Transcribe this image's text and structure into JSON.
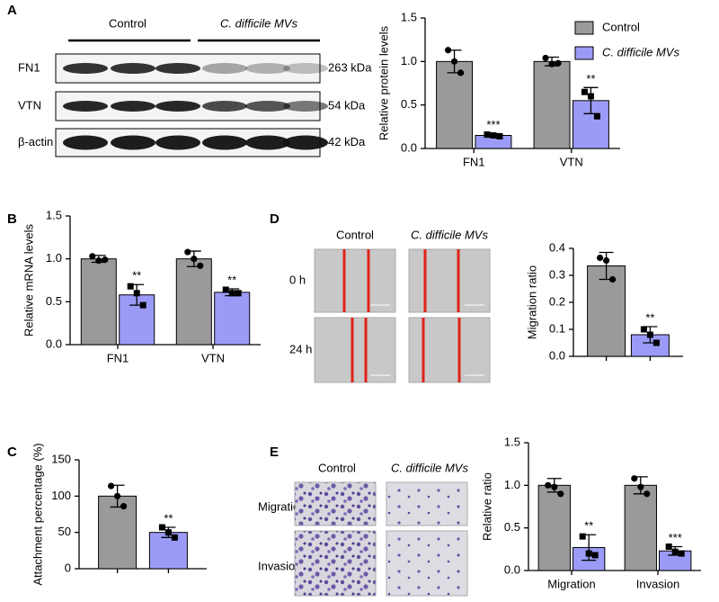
{
  "panels": [
    "A",
    "B",
    "C",
    "D",
    "E"
  ],
  "blot": {
    "groups": [
      "Control",
      "C. difficile MVs"
    ],
    "rows": [
      {
        "label": "FN1",
        "size": "263 kDa"
      },
      {
        "label": "VTN",
        "size": "54 kDa"
      },
      {
        "label": "β-actin",
        "size": "42 kDa"
      }
    ]
  },
  "scratch": {
    "columns": [
      "Control",
      "C. difficile MVs"
    ],
    "rows": [
      "0 h",
      "24 h"
    ]
  },
  "transwell": {
    "columns": [
      "Control",
      "C. difficile MVs"
    ],
    "rows": [
      "Migration",
      "Invasion"
    ]
  },
  "chart_data": [
    {
      "type": "bar",
      "y_label": "Relative protein levels",
      "categories": [
        "FN1",
        "VTN"
      ],
      "ylim": [
        0,
        1.5
      ],
      "yticks": [
        {
          "value": 0,
          "label": "0.0"
        },
        0.5,
        {
          "value": 1,
          "label": "1.0"
        },
        1.5
      ],
      "legend": "right",
      "series": [
        {
          "name": "Control",
          "color": "#9a9a9a",
          "values": [
            1.0,
            1.0
          ],
          "errors": [
            0.13,
            0.05
          ],
          "points": [
            [
              1.13,
              1.0,
              0.87
            ],
            [
              1.04,
              0.97,
              0.98
            ]
          ]
        },
        {
          "name": "C. difficile MVs",
          "color": "#9b9bf7",
          "values": [
            0.15,
            0.55
          ],
          "errors": [
            0.02,
            0.15
          ],
          "points": [
            [
              0.16,
              0.15,
              0.14
            ],
            [
              0.65,
              0.6,
              0.37
            ]
          ],
          "annotations": [
            "***",
            "**"
          ]
        }
      ]
    },
    {
      "type": "bar",
      "y_label": "Relative mRNA levels",
      "categories": [
        "FN1",
        "VTN"
      ],
      "ylim": [
        0,
        1.5
      ],
      "yticks": [
        {
          "value": 0,
          "label": "0.0"
        },
        0.5,
        {
          "value": 1,
          "label": "1.0"
        },
        1.5
      ],
      "series": [
        {
          "color": "#9a9a9a",
          "values": [
            1.0,
            1.0
          ],
          "errors": [
            0.04,
            0.09
          ],
          "points": [
            [
              1.03,
              0.98,
              0.99
            ],
            [
              1.08,
              1.0,
              0.92
            ]
          ]
        },
        {
          "color": "#9b9bf7",
          "values": [
            0.58,
            0.61
          ],
          "errors": [
            0.12,
            0.04
          ],
          "points": [
            [
              0.68,
              0.6,
              0.46
            ],
            [
              0.64,
              0.6,
              0.6
            ]
          ],
          "annotations": [
            "**",
            "**"
          ]
        }
      ]
    },
    {
      "type": "bar",
      "y_label": "Attachment percentage (%)",
      "categories": [
        null
      ],
      "ylim": [
        0,
        150
      ],
      "yticks": [
        0,
        50,
        100,
        150
      ],
      "series": [
        {
          "color": "#9a9a9a",
          "values": [
            100
          ],
          "errors": [
            15
          ],
          "points": [
            [
              114,
              100,
              86
            ]
          ]
        },
        {
          "color": "#9b9bf7",
          "values": [
            50
          ],
          "errors": [
            7
          ],
          "points": [
            [
              57,
              50,
              43
            ]
          ],
          "annotations": [
            "**"
          ]
        }
      ]
    },
    {
      "type": "bar",
      "y_label": "Migration ratio",
      "categories": [
        null
      ],
      "ylim": [
        0,
        0.4
      ],
      "yticks": [
        {
          "value": 0,
          "label": "0.0"
        },
        0.1,
        0.2,
        0.3,
        0.4
      ],
      "series": [
        {
          "color": "#9a9a9a",
          "values": [
            0.335
          ],
          "errors": [
            0.05
          ],
          "points": [
            [
              0.365,
              0.355,
              0.285
            ]
          ]
        },
        {
          "color": "#9b9bf7",
          "values": [
            0.08
          ],
          "errors": [
            0.03
          ],
          "points": [
            [
              0.1,
              0.08,
              0.05
            ]
          ],
          "annotations": [
            "**"
          ]
        }
      ]
    },
    {
      "type": "bar",
      "y_label": "Relative ratio",
      "categories": [
        "Migration",
        "Invasion"
      ],
      "ylim": [
        0,
        1.5
      ],
      "yticks": [
        {
          "value": 0,
          "label": "0.0"
        },
        0.5,
        {
          "value": 1,
          "label": "1.0"
        },
        1.5
      ],
      "series": [
        {
          "color": "#9a9a9a",
          "values": [
            1.0,
            1.0
          ],
          "errors": [
            0.08,
            0.1
          ],
          "points": [
            [
              1.0,
              0.98,
              0.9
            ],
            [
              1.08,
              0.98,
              0.9
            ]
          ]
        },
        {
          "color": "#9b9bf7",
          "values": [
            0.27,
            0.23
          ],
          "errors": [
            0.15,
            0.05
          ],
          "points": [
            [
              0.4,
              0.2,
              0.18
            ],
            [
              0.28,
              0.22,
              0.2
            ]
          ],
          "annotations": [
            "**",
            "***"
          ]
        }
      ]
    }
  ]
}
